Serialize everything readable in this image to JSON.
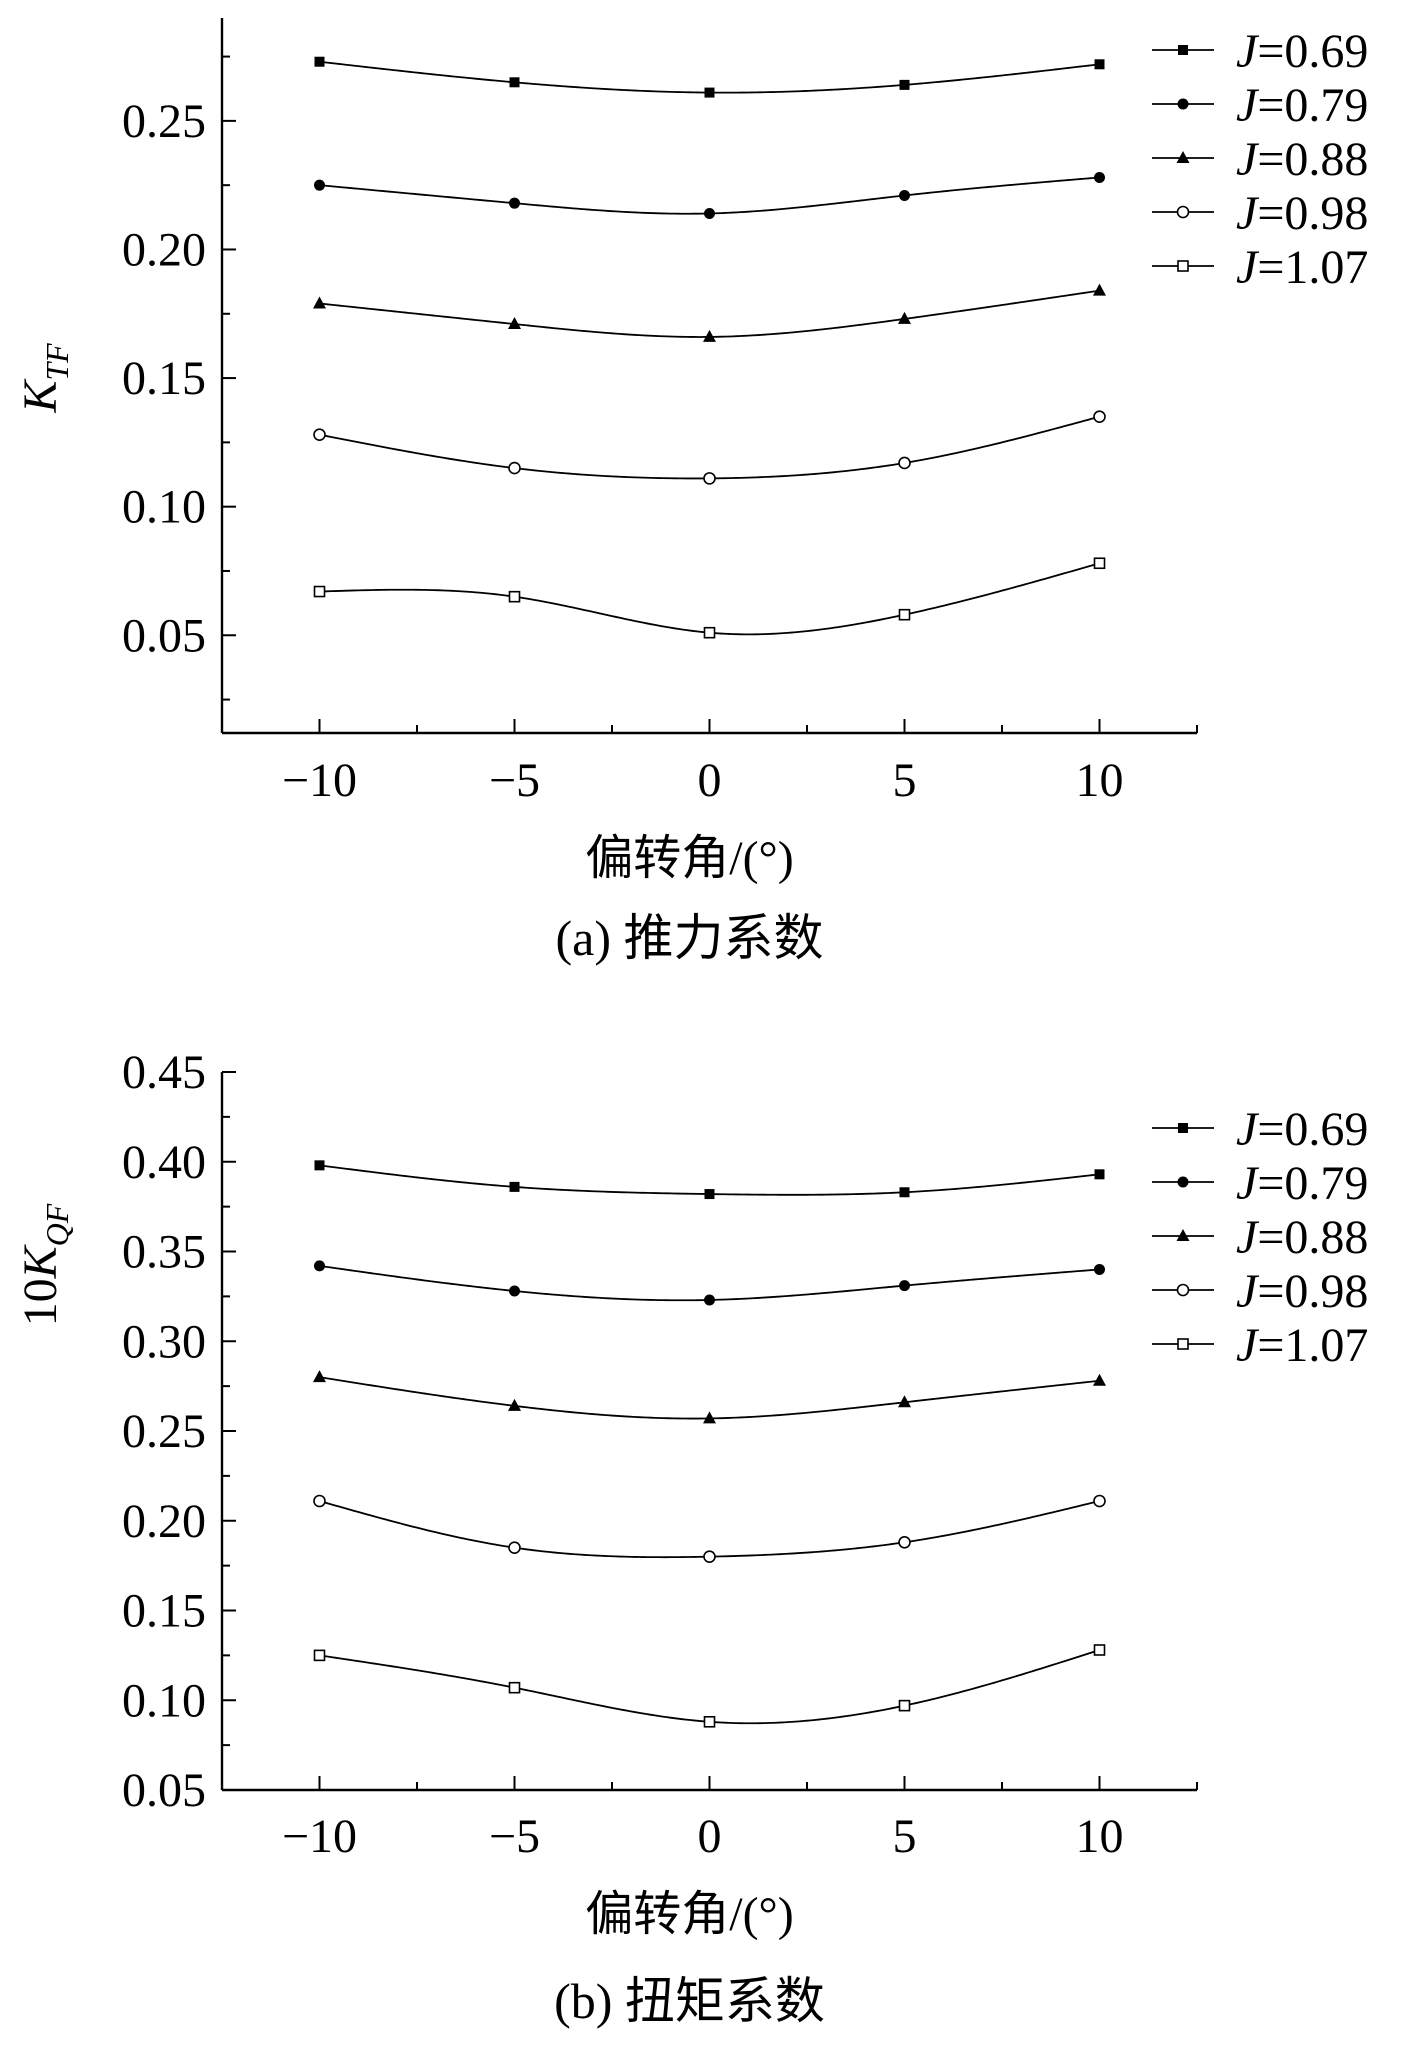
{
  "figure": {
    "panels": [
      {
        "caption": "(a) 推力系数",
        "xlabel": "偏转角/(°)",
        "ylabel_prefix": "",
        "ylabel_main": "K",
        "ylabel_sub": "TF"
      },
      {
        "caption": "(b) 扭矩系数",
        "xlabel": "偏转角/(°)",
        "ylabel_prefix": "10",
        "ylabel_main": "K",
        "ylabel_sub": "QF"
      }
    ]
  },
  "chart_data": [
    {
      "type": "line",
      "title": "(a) 推力系数",
      "xlabel": "偏转角/(°)",
      "ylabel": "K_TF",
      "x": [
        -10,
        -5,
        0,
        5,
        10
      ],
      "xlim": [
        -12.5,
        12.5
      ],
      "xticks": [
        -10,
        -5,
        0,
        5,
        10
      ],
      "xtick_labels": [
        "−10",
        "−5",
        "0",
        "5",
        "10"
      ],
      "ylim": [
        0.012,
        0.29
      ],
      "yticks": [
        0.05,
        0.1,
        0.15,
        0.2,
        0.25
      ],
      "ytick_labels": [
        "0.05",
        "0.10",
        "0.15",
        "0.20",
        "0.25"
      ],
      "legend_position": "top-right outside",
      "grid": false,
      "series": [
        {
          "name": "J=0.69",
          "j_label": "J",
          "value_label": "=0.69",
          "marker": "filled-square",
          "values": [
            0.273,
            0.265,
            0.261,
            0.264,
            0.272
          ]
        },
        {
          "name": "J=0.79",
          "j_label": "J",
          "value_label": "=0.79",
          "marker": "filled-circle",
          "values": [
            0.225,
            0.218,
            0.214,
            0.221,
            0.228
          ]
        },
        {
          "name": "J=0.88",
          "j_label": "J",
          "value_label": "=0.88",
          "marker": "filled-triangle",
          "values": [
            0.179,
            0.171,
            0.166,
            0.173,
            0.184
          ]
        },
        {
          "name": "J=0.98",
          "j_label": "J",
          "value_label": "=0.98",
          "marker": "open-circle",
          "values": [
            0.128,
            0.115,
            0.111,
            0.117,
            0.135
          ]
        },
        {
          "name": "J=1.07",
          "j_label": "J",
          "value_label": "=1.07",
          "marker": "open-square",
          "values": [
            0.067,
            0.065,
            0.051,
            0.058,
            0.078
          ]
        }
      ]
    },
    {
      "type": "line",
      "title": "(b) 扭矩系数",
      "xlabel": "偏转角/(°)",
      "ylabel": "10K_QF",
      "x": [
        -10,
        -5,
        0,
        5,
        10
      ],
      "xlim": [
        -12.5,
        12.5
      ],
      "xticks": [
        -10,
        -5,
        0,
        5,
        10
      ],
      "xtick_labels": [
        "−10",
        "−5",
        "0",
        "5",
        "10"
      ],
      "ylim": [
        0.05,
        0.45
      ],
      "yticks": [
        0.05,
        0.1,
        0.15,
        0.2,
        0.25,
        0.3,
        0.35,
        0.4,
        0.45
      ],
      "ytick_labels": [
        "0.05",
        "0.10",
        "0.15",
        "0.20",
        "0.25",
        "0.30",
        "0.35",
        "0.40",
        "0.45"
      ],
      "legend_position": "top-right outside",
      "grid": false,
      "series": [
        {
          "name": "J=0.69",
          "j_label": "J",
          "value_label": "=0.69",
          "marker": "filled-square",
          "values": [
            0.398,
            0.386,
            0.382,
            0.383,
            0.393
          ]
        },
        {
          "name": "J=0.79",
          "j_label": "J",
          "value_label": "=0.79",
          "marker": "filled-circle",
          "values": [
            0.342,
            0.328,
            0.323,
            0.331,
            0.34
          ]
        },
        {
          "name": "J=0.88",
          "j_label": "J",
          "value_label": "=0.88",
          "marker": "filled-triangle",
          "values": [
            0.28,
            0.264,
            0.257,
            0.266,
            0.278
          ]
        },
        {
          "name": "J=0.98",
          "j_label": "J",
          "value_label": "=0.98",
          "marker": "open-circle",
          "values": [
            0.211,
            0.185,
            0.18,
            0.188,
            0.211
          ]
        },
        {
          "name": "J=1.07",
          "j_label": "J",
          "value_label": "=1.07",
          "marker": "open-square",
          "values": [
            0.125,
            0.107,
            0.088,
            0.097,
            0.128
          ]
        }
      ]
    }
  ]
}
